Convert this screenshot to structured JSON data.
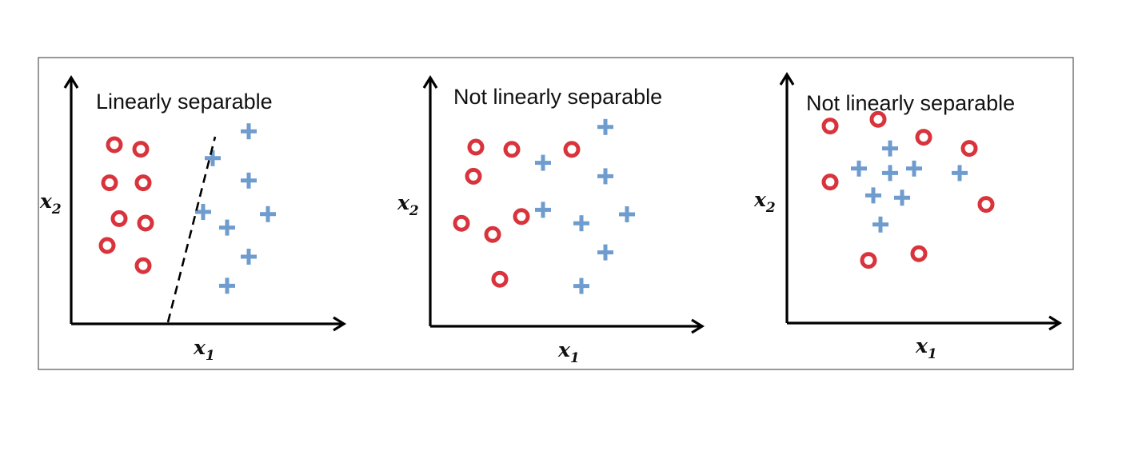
{
  "colors": {
    "class_circle": "#d9333c",
    "class_plus": "#6f9cce",
    "axis": "#000000"
  },
  "panels": [
    {
      "title": "Linearly separable",
      "x_axis_label": "x",
      "x_axis_subscript": "1",
      "y_axis_label": "x",
      "y_axis_subscript": "2",
      "has_decision_boundary": true,
      "decision_boundary_style": "dashed",
      "circles": [
        [
          0.18,
          0.8
        ],
        [
          0.29,
          0.78
        ],
        [
          0.16,
          0.63
        ],
        [
          0.3,
          0.63
        ],
        [
          0.2,
          0.47
        ],
        [
          0.31,
          0.45
        ],
        [
          0.15,
          0.35
        ],
        [
          0.3,
          0.26
        ]
      ],
      "pluses": [
        [
          0.74,
          0.86
        ],
        [
          0.59,
          0.74
        ],
        [
          0.74,
          0.64
        ],
        [
          0.55,
          0.5
        ],
        [
          0.82,
          0.49
        ],
        [
          0.65,
          0.43
        ],
        [
          0.74,
          0.3
        ],
        [
          0.65,
          0.17
        ]
      ]
    },
    {
      "title": "Not linearly separable",
      "x_axis_label": "x",
      "x_axis_subscript": "1",
      "y_axis_label": "x",
      "y_axis_subscript": "2",
      "has_decision_boundary": false,
      "circles": [
        [
          0.19,
          0.8
        ],
        [
          0.34,
          0.79
        ],
        [
          0.59,
          0.79
        ],
        [
          0.18,
          0.67
        ],
        [
          0.13,
          0.46
        ],
        [
          0.38,
          0.49
        ],
        [
          0.26,
          0.41
        ],
        [
          0.29,
          0.21
        ]
      ],
      "pluses": [
        [
          0.73,
          0.89
        ],
        [
          0.47,
          0.73
        ],
        [
          0.73,
          0.67
        ],
        [
          0.47,
          0.52
        ],
        [
          0.63,
          0.46
        ],
        [
          0.82,
          0.5
        ],
        [
          0.73,
          0.33
        ],
        [
          0.63,
          0.18
        ]
      ]
    },
    {
      "title": "Not linearly separable",
      "x_axis_label": "x",
      "x_axis_subscript": "1",
      "y_axis_label": "x",
      "y_axis_subscript": "2",
      "has_decision_boundary": false,
      "circles": [
        [
          0.18,
          0.88
        ],
        [
          0.38,
          0.91
        ],
        [
          0.57,
          0.83
        ],
        [
          0.76,
          0.78
        ],
        [
          0.18,
          0.63
        ],
        [
          0.83,
          0.53
        ],
        [
          0.34,
          0.28
        ],
        [
          0.55,
          0.31
        ]
      ],
      "pluses": [
        [
          0.43,
          0.78
        ],
        [
          0.3,
          0.69
        ],
        [
          0.43,
          0.67
        ],
        [
          0.53,
          0.69
        ],
        [
          0.72,
          0.67
        ],
        [
          0.36,
          0.57
        ],
        [
          0.48,
          0.56
        ],
        [
          0.39,
          0.44
        ]
      ]
    }
  ]
}
